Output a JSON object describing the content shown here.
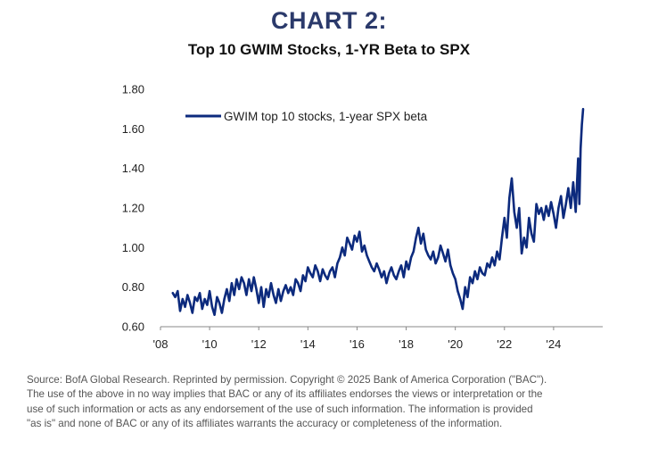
{
  "header": {
    "chart_number": "CHART 2:",
    "chart_title": "Top 10 GWIM Stocks, 1-YR Beta to SPX"
  },
  "colors": {
    "series": "#0c2a7d",
    "heading": "#2b3a6b",
    "axis": "#888888"
  },
  "chart_data": {
    "type": "line",
    "title": "Top 10 GWIM Stocks, 1-YR Beta to SPX",
    "xlabel": "",
    "ylabel": "",
    "xlim": [
      2008.0,
      2026.0
    ],
    "ylim": [
      0.6,
      1.8
    ],
    "x_ticks": [
      {
        "value": 2008,
        "label": "'08"
      },
      {
        "value": 2010,
        "label": "'10"
      },
      {
        "value": 2012,
        "label": "'12"
      },
      {
        "value": 2014,
        "label": "'14"
      },
      {
        "value": 2016,
        "label": "'16"
      },
      {
        "value": 2018,
        "label": "'18"
      },
      {
        "value": 2020,
        "label": "'20"
      },
      {
        "value": 2022,
        "label": "'22"
      },
      {
        "value": 2024,
        "label": "'24"
      }
    ],
    "y_ticks": [
      {
        "value": 0.6,
        "label": "0.60"
      },
      {
        "value": 0.8,
        "label": "0.80"
      },
      {
        "value": 1.0,
        "label": "1.00"
      },
      {
        "value": 1.2,
        "label": "1.20"
      },
      {
        "value": 1.4,
        "label": "1.40"
      },
      {
        "value": 1.6,
        "label": "1.60"
      },
      {
        "value": 1.8,
        "label": "1.80"
      }
    ],
    "grid": false,
    "legend_position": "top-left",
    "series": [
      {
        "name": "GWIM top 10 stocks, 1-year SPX beta",
        "x": [
          2008.5,
          2008.6,
          2008.7,
          2008.8,
          2008.9,
          2009.0,
          2009.1,
          2009.2,
          2009.3,
          2009.4,
          2009.5,
          2009.6,
          2009.7,
          2009.8,
          2009.9,
          2010.0,
          2010.1,
          2010.2,
          2010.3,
          2010.4,
          2010.5,
          2010.6,
          2010.7,
          2010.8,
          2010.9,
          2011.0,
          2011.1,
          2011.2,
          2011.3,
          2011.4,
          2011.5,
          2011.6,
          2011.7,
          2011.8,
          2011.9,
          2012.0,
          2012.1,
          2012.2,
          2012.3,
          2012.4,
          2012.5,
          2012.6,
          2012.7,
          2012.8,
          2012.9,
          2013.0,
          2013.1,
          2013.2,
          2013.3,
          2013.4,
          2013.5,
          2013.6,
          2013.7,
          2013.8,
          2013.9,
          2014.0,
          2014.1,
          2014.2,
          2014.3,
          2014.4,
          2014.5,
          2014.6,
          2014.7,
          2014.8,
          2014.9,
          2015.0,
          2015.1,
          2015.2,
          2015.3,
          2015.4,
          2015.5,
          2015.6,
          2015.7,
          2015.8,
          2015.9,
          2016.0,
          2016.1,
          2016.2,
          2016.3,
          2016.4,
          2016.5,
          2016.6,
          2016.7,
          2016.8,
          2016.9,
          2017.0,
          2017.1,
          2017.2,
          2017.3,
          2017.4,
          2017.5,
          2017.6,
          2017.7,
          2017.8,
          2017.9,
          2018.0,
          2018.1,
          2018.2,
          2018.3,
          2018.4,
          2018.5,
          2018.6,
          2018.7,
          2018.8,
          2018.9,
          2019.0,
          2019.1,
          2019.2,
          2019.3,
          2019.4,
          2019.5,
          2019.6,
          2019.7,
          2019.8,
          2019.9,
          2020.0,
          2020.1,
          2020.2,
          2020.3,
          2020.4,
          2020.5,
          2020.6,
          2020.7,
          2020.8,
          2020.9,
          2021.0,
          2021.1,
          2021.2,
          2021.3,
          2021.4,
          2021.5,
          2021.6,
          2021.7,
          2021.8,
          2021.9,
          2022.0,
          2022.1,
          2022.2,
          2022.3,
          2022.4,
          2022.5,
          2022.6,
          2022.7,
          2022.8,
          2022.9,
          2023.0,
          2023.1,
          2023.2,
          2023.3,
          2023.4,
          2023.5,
          2023.6,
          2023.7,
          2023.8,
          2023.9,
          2024.0,
          2024.1,
          2024.2,
          2024.3,
          2024.4,
          2024.5,
          2024.6,
          2024.7,
          2024.8,
          2024.9,
          2025.0,
          2025.05,
          2025.1,
          2025.15,
          2025.2
        ],
        "values": [
          0.77,
          0.75,
          0.78,
          0.68,
          0.74,
          0.7,
          0.76,
          0.72,
          0.67,
          0.75,
          0.73,
          0.77,
          0.69,
          0.74,
          0.71,
          0.78,
          0.7,
          0.66,
          0.75,
          0.72,
          0.67,
          0.74,
          0.79,
          0.73,
          0.82,
          0.76,
          0.84,
          0.79,
          0.85,
          0.82,
          0.76,
          0.84,
          0.78,
          0.85,
          0.79,
          0.72,
          0.8,
          0.7,
          0.79,
          0.75,
          0.82,
          0.76,
          0.72,
          0.79,
          0.73,
          0.78,
          0.81,
          0.77,
          0.8,
          0.76,
          0.84,
          0.82,
          0.78,
          0.86,
          0.83,
          0.9,
          0.87,
          0.85,
          0.91,
          0.88,
          0.83,
          0.89,
          0.86,
          0.84,
          0.88,
          0.9,
          0.85,
          0.92,
          0.95,
          1.0,
          0.96,
          1.05,
          1.02,
          0.99,
          1.06,
          1.03,
          1.08,
          0.98,
          1.01,
          0.96,
          0.93,
          0.9,
          0.88,
          0.92,
          0.89,
          0.85,
          0.88,
          0.82,
          0.87,
          0.9,
          0.86,
          0.84,
          0.88,
          0.91,
          0.85,
          0.93,
          0.89,
          0.95,
          0.98,
          1.05,
          1.1,
          1.02,
          1.07,
          0.99,
          0.96,
          0.94,
          0.98,
          0.92,
          0.95,
          1.01,
          0.97,
          0.93,
          0.99,
          0.91,
          0.87,
          0.84,
          0.78,
          0.74,
          0.69,
          0.8,
          0.75,
          0.85,
          0.82,
          0.88,
          0.84,
          0.9,
          0.87,
          0.86,
          0.92,
          0.9,
          0.95,
          0.91,
          0.98,
          0.94,
          1.05,
          1.15,
          1.05,
          1.25,
          1.35,
          1.18,
          1.1,
          1.2,
          0.97,
          1.05,
          1.0,
          1.15,
          1.07,
          1.03,
          1.22,
          1.17,
          1.2,
          1.14,
          1.21,
          1.16,
          1.23,
          1.17,
          1.1,
          1.2,
          1.26,
          1.15,
          1.22,
          1.3,
          1.2,
          1.33,
          1.18,
          1.45,
          1.22,
          1.5,
          1.62,
          1.7
        ]
      }
    ]
  },
  "footer": {
    "source_line_1": "Source: BofA Global Research. Reprinted by permission. Copyright © 2025 Bank of America Corporation (\"BAC\").",
    "source_line_2": "The use of the above in no way implies that BAC or any of its affiliates endorses the views or interpretation or the",
    "source_line_3": "use of such information or acts as any endorsement of the use of such information. The information is provided",
    "source_line_4": "\"as is\" and none of BAC or any of its affiliates warrants the accuracy or completeness of the information."
  }
}
